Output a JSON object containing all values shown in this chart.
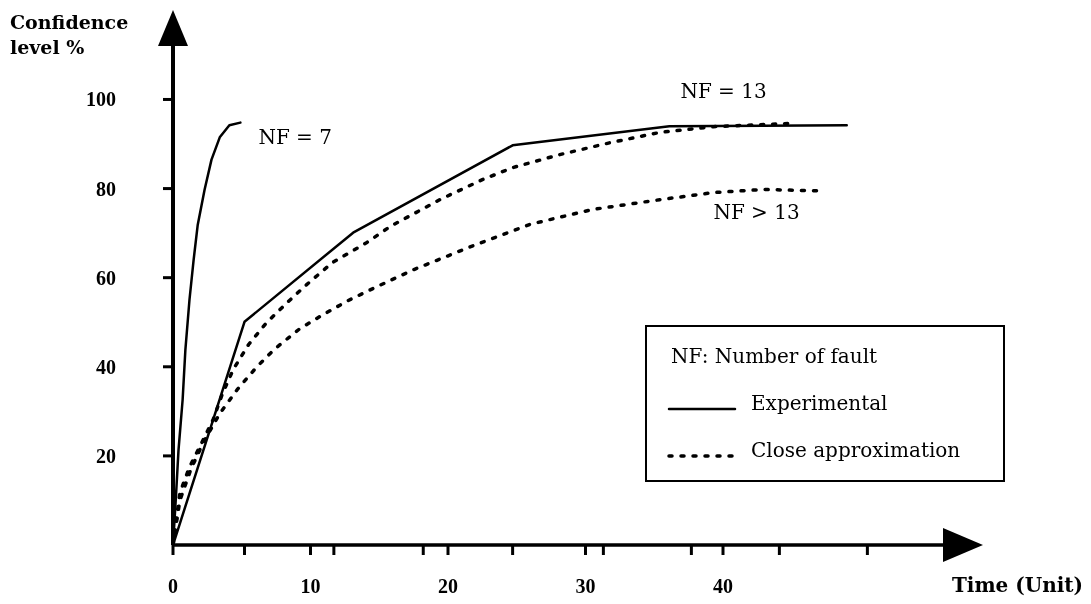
{
  "chart_data": {
    "type": "line",
    "ylabel": "Confidence level %",
    "xlabel": "Time (Unit)",
    "legend_title": "NF: Number of fault",
    "legend": "bottom right",
    "xlim": [
      0,
      56
    ],
    "ylim": [
      0,
      112
    ],
    "xticks": [
      0,
      {
        "value": 5.2,
        "label": null
      },
      10,
      {
        "value": 11.7,
        "label": null
      },
      {
        "value": 18.2,
        "label": null
      },
      20,
      {
        "value": 24.7,
        "label": null
      },
      30,
      {
        "value": 31.3,
        "label": null
      },
      {
        "value": 37.7,
        "label": null
      },
      40,
      {
        "value": 44.1,
        "label": null
      },
      {
        "value": 50.5,
        "label": null
      }
    ],
    "yticks": [
      20,
      40,
      60,
      80,
      100
    ],
    "series": [
      {
        "color": "#000000",
        "line_style": "solid",
        "x": [
          0,
          0.2,
          0.4,
          0.7,
          0.9,
          1.2,
          1.5,
          1.8,
          2.3,
          2.8,
          3.4,
          4.1,
          4.9
        ],
        "values": [
          0,
          10.1,
          21.3,
          32.6,
          43.8,
          55.1,
          64.0,
          71.9,
          79.8,
          86.5,
          91.5,
          94.2,
          94.8
        ]
      },
      {
        "name": "Experimental",
        "color": "#000000",
        "line_style": "solid",
        "x": [
          0,
          5.2,
          13.1,
          24.7,
          36.1,
          49.0
        ],
        "values": [
          0,
          50.1,
          70.1,
          89.7,
          94.0,
          94.2
        ]
      },
      {
        "name": "Close approximation",
        "color": "#000000",
        "line_style": "dotted",
        "x": [
          0,
          0.5,
          1.2,
          2.1,
          2.9,
          3.6,
          4.4,
          5.5,
          6.8,
          8.3,
          9.7,
          11.6,
          14.1,
          15.8,
          19.4,
          22.5,
          24.7,
          28.1,
          31.8,
          35.4,
          39.3,
          44.7
        ],
        "values": [
          0,
          11.7,
          17.5,
          23.0,
          28.0,
          34.0,
          39.5,
          45.0,
          49.9,
          54.4,
          58.4,
          63.4,
          67.9,
          71.5,
          77.5,
          82.0,
          84.7,
          87.6,
          90.3,
          92.6,
          93.9,
          94.6
        ]
      },
      {
        "color": "#000000",
        "line_style": "dotted",
        "x": [
          0,
          0.5,
          1.3,
          2.2,
          3.4,
          4.7,
          6.1,
          7.4,
          9.2,
          10.8,
          12.7,
          14.5,
          17.5,
          19.6,
          21.6,
          26.0,
          30.5,
          35.4,
          39.3,
          42.9,
          46.8
        ],
        "values": [
          0,
          10.0,
          17.0,
          23.0,
          29.5,
          35.0,
          40.0,
          44.0,
          48.5,
          51.5,
          54.8,
          57.5,
          61.8,
          64.4,
          66.9,
          72.0,
          75.3,
          77.5,
          79.1,
          79.8,
          79.5
        ]
      }
    ],
    "annotations": [
      {
        "text": "NF = 7",
        "x": 4.9,
        "y": 94.8
      },
      {
        "text": "NF = 13",
        "x": 36.1,
        "y": 94.0
      },
      {
        "text": "NF > 13",
        "x": 39.3,
        "y": 79.1
      }
    ]
  }
}
